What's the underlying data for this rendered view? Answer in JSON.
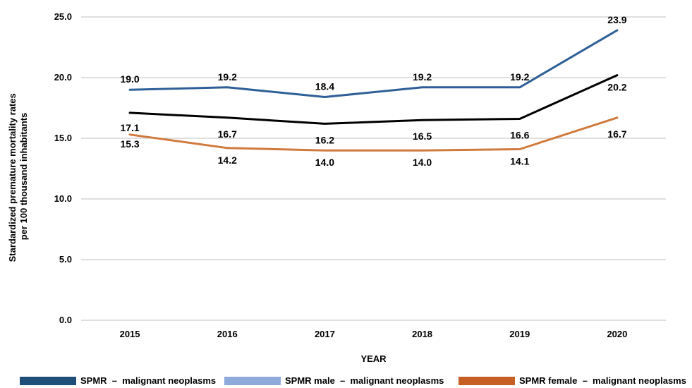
{
  "chart_data": {
    "type": "line",
    "categories": [
      "2015",
      "2016",
      "2017",
      "2018",
      "2019",
      "2020"
    ],
    "xlabel": "YEAR",
    "ylabel_lines": [
      "Stardardized premature mortality rates",
      "per 100 thousand inhabitants"
    ],
    "ylim": [
      0,
      25
    ],
    "yticks": [
      "0.0",
      "5.0",
      "10.0",
      "15.0",
      "20.0",
      "25.0"
    ],
    "grid": true,
    "legend_position": "bottom",
    "series": [
      {
        "name": "SPMR  –  malignant neoplasms",
        "values": [
          17.1,
          16.7,
          16.2,
          16.5,
          16.6,
          20.2
        ],
        "labels": [
          "17.1",
          "16.7",
          "16.2",
          "16.5",
          "16.6",
          "20.2"
        ],
        "color": "#000000",
        "legend_color": "#1f4e79"
      },
      {
        "name": "SPMR male  –  malignant neoplasms",
        "values": [
          19.0,
          19.2,
          18.4,
          19.2,
          19.2,
          23.9
        ],
        "labels": [
          "19.0",
          "19.2",
          "18.4",
          "19.2",
          "19.2",
          "23.9"
        ],
        "color": "#2e5f97",
        "legend_color": "#8eaadb"
      },
      {
        "name": "SPMR female  –  malignant neoplasms",
        "values": [
          15.3,
          14.2,
          14.0,
          14.0,
          14.1,
          16.7
        ],
        "labels": [
          "15.3",
          "14.2",
          "14.0",
          "14.0",
          "14.1",
          "16.7"
        ],
        "color": "#d07a3e",
        "legend_color": "#c65f24"
      }
    ]
  }
}
